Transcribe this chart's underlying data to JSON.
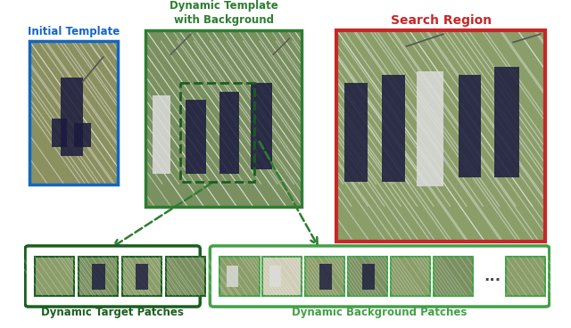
{
  "initial_template_label": "Initial Template",
  "dynamic_template_label": "Dynamic Template\nwith Background",
  "search_region_label": "Search Region",
  "dynamic_target_label": "Dynamic Target Patches",
  "dynamic_background_label": "Dynamic Background Patches",
  "initial_template_color": "#1565C0",
  "dynamic_template_color": "#2E7D32",
  "search_region_color": "#C62828",
  "patches_outer_color_dark": "#1B5E20",
  "patches_outer_color_light": "#43A047",
  "arrow_color": "#2E7D32",
  "label_color_blue": "#1565C0",
  "label_color_green_dark": "#2E7D32",
  "label_color_green_light": "#43A047",
  "label_color_red": "#C62828",
  "bg_color": "#FFFFFF",
  "grass_color": "#8B9E6A",
  "grass_color2": "#7A9060",
  "n_target_patches": 4,
  "n_background_patches": 6,
  "ellipsis": "...",
  "field_line_color": "#ffffff",
  "player_dark": "#1a1a3e",
  "player_white": "#dddddd"
}
